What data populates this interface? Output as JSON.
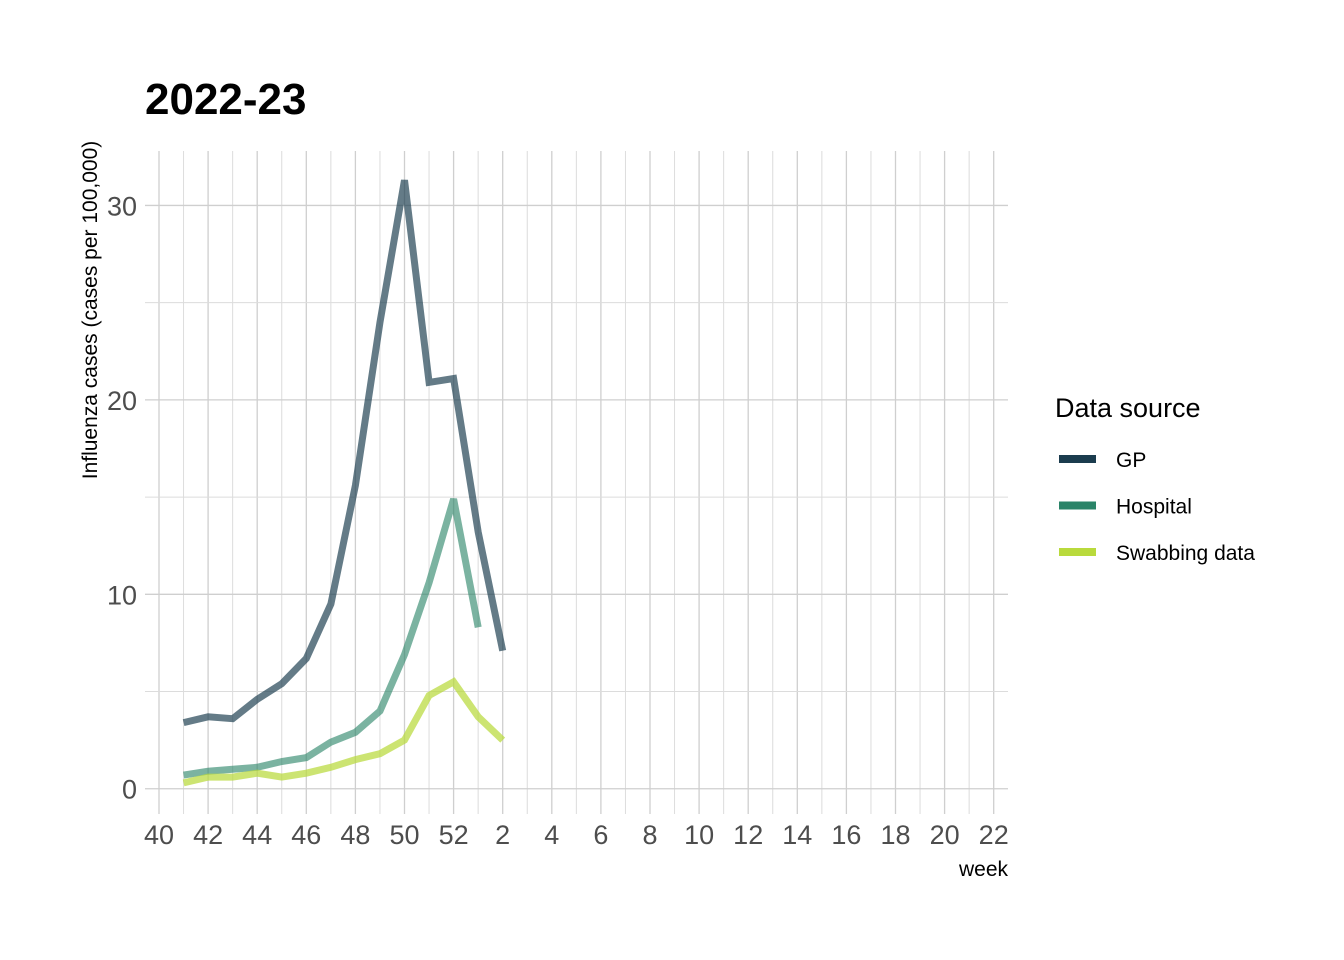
{
  "chart_data": {
    "type": "line",
    "title": "2022-23",
    "xlabel": "week",
    "ylabel": "Influenza cases (cases per 100,000)",
    "x_ticks": [
      "40",
      "42",
      "44",
      "46",
      "48",
      "50",
      "52",
      "2",
      "4",
      "6",
      "8",
      "10",
      "12",
      "14",
      "16",
      "18",
      "20",
      "22"
    ],
    "y_ticks": [
      0,
      10,
      20,
      30
    ],
    "ylim": [
      -1.3,
      32.8
    ],
    "grid": true,
    "legend": {
      "title": "Data source",
      "position": "right"
    },
    "series": [
      {
        "name": "GP",
        "color": "#1b3c4e",
        "opacity": 0.68,
        "x": [
          "41",
          "42",
          "43",
          "44",
          "45",
          "46",
          "47",
          "48",
          "49",
          "50",
          "51",
          "52",
          "1",
          "2"
        ],
        "values": [
          3.4,
          3.7,
          3.6,
          4.6,
          5.4,
          6.7,
          9.5,
          15.6,
          24.0,
          31.3,
          20.9,
          21.1,
          13.2,
          7.1
        ]
      },
      {
        "name": "Hospital",
        "color": "#2a8468",
        "opacity": 0.62,
        "x": [
          "41",
          "42",
          "43",
          "44",
          "45",
          "46",
          "47",
          "48",
          "49",
          "50",
          "51",
          "52",
          "1"
        ],
        "values": [
          0.7,
          0.9,
          1.0,
          1.1,
          1.4,
          1.6,
          2.4,
          2.9,
          4.0,
          6.9,
          10.6,
          14.9,
          8.3
        ]
      },
      {
        "name": "Swabbing data",
        "color": "#b9da3c",
        "opacity": 0.72,
        "x": [
          "41",
          "42",
          "43",
          "44",
          "45",
          "46",
          "47",
          "48",
          "49",
          "50",
          "51",
          "52",
          "1",
          "2"
        ],
        "values": [
          0.3,
          0.6,
          0.6,
          0.8,
          0.6,
          0.8,
          1.1,
          1.5,
          1.8,
          2.5,
          4.8,
          5.5,
          3.7,
          2.5
        ]
      }
    ]
  }
}
